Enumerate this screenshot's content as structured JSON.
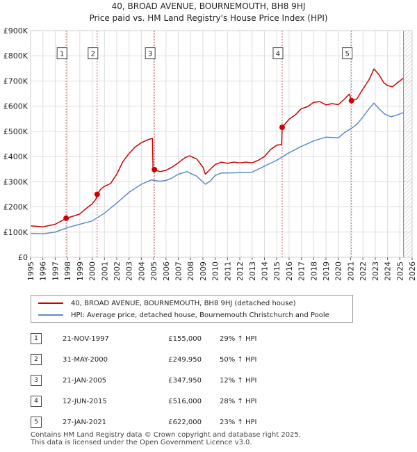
{
  "titles": {
    "line1": "40, BROAD AVENUE, BOURNEMOUTH, BH8 9HJ",
    "line2": "Price paid vs. HM Land Registry's House Price Index (HPI)"
  },
  "chart_data": {
    "type": "line",
    "title": "Price paid vs. HM Land Registry's House Price Index (HPI)",
    "xlim": [
      1995,
      2026
    ],
    "ylim": [
      0,
      900000
    ],
    "y_ticks": [
      0,
      100000,
      200000,
      300000,
      400000,
      500000,
      600000,
      700000,
      800000,
      900000
    ],
    "y_tick_labels": [
      "£0",
      "£100K",
      "£200K",
      "£300K",
      "£400K",
      "£500K",
      "£600K",
      "£700K",
      "£800K",
      "£900K"
    ],
    "x_ticks": [
      1995,
      1996,
      1997,
      1998,
      1999,
      2000,
      2001,
      2002,
      2003,
      2004,
      2005,
      2006,
      2007,
      2008,
      2009,
      2010,
      2011,
      2012,
      2013,
      2014,
      2015,
      2016,
      2017,
      2018,
      2019,
      2020,
      2021,
      2022,
      2023,
      2024,
      2025,
      2026
    ],
    "x_tick_labels": [
      "1995",
      "1996",
      "1997",
      "1998",
      "1999",
      "2000",
      "2001",
      "2002",
      "2003",
      "2004",
      "2005",
      "2006",
      "2007",
      "2008",
      "2009",
      "2010",
      "2011",
      "2012",
      "2013",
      "2014",
      "2015",
      "2016",
      "2017",
      "2018",
      "2019",
      "2020",
      "2021",
      "2022",
      "2023",
      "2024",
      "2025",
      "2026"
    ],
    "grid": true,
    "hatched_from": 2025.3,
    "series": [
      {
        "name": "40, BROAD AVENUE, BOURNEMOUTH, BH8 9HJ (detached house)",
        "color": "#cc0000",
        "points": [
          [
            1995.0,
            125000
          ],
          [
            1996.0,
            121000
          ],
          [
            1996.5,
            126000
          ],
          [
            1997.0,
            131000
          ],
          [
            1997.5,
            144000
          ],
          [
            1997.89,
            155000
          ],
          [
            1998.5,
            164000
          ],
          [
            1999.0,
            172000
          ],
          [
            1999.5,
            193000
          ],
          [
            2000.0,
            212000
          ],
          [
            2000.3,
            230000
          ],
          [
            2000.41,
            249950
          ],
          [
            2000.7,
            270000
          ],
          [
            2001.0,
            282000
          ],
          [
            2001.5,
            293000
          ],
          [
            2002.0,
            330000
          ],
          [
            2002.5,
            380000
          ],
          [
            2003.0,
            412000
          ],
          [
            2003.5,
            438000
          ],
          [
            2004.0,
            455000
          ],
          [
            2004.5,
            466000
          ],
          [
            2004.9,
            472000
          ],
          [
            2004.95,
            350000
          ],
          [
            2005.06,
            347950
          ],
          [
            2005.5,
            340000
          ],
          [
            2006.0,
            345000
          ],
          [
            2006.5,
            358000
          ],
          [
            2007.0,
            375000
          ],
          [
            2007.5,
            394000
          ],
          [
            2007.9,
            403000
          ],
          [
            2008.5,
            390000
          ],
          [
            2009.0,
            358000
          ],
          [
            2009.2,
            330000
          ],
          [
            2009.5,
            345000
          ],
          [
            2010.0,
            368000
          ],
          [
            2010.5,
            378000
          ],
          [
            2011.0,
            373000
          ],
          [
            2011.5,
            378000
          ],
          [
            2012.0,
            375000
          ],
          [
            2012.5,
            378000
          ],
          [
            2013.0,
            375000
          ],
          [
            2013.5,
            385000
          ],
          [
            2014.0,
            400000
          ],
          [
            2014.5,
            428000
          ],
          [
            2015.0,
            445000
          ],
          [
            2015.4,
            448000
          ],
          [
            2015.44,
            516000
          ],
          [
            2016.0,
            548000
          ],
          [
            2016.5,
            565000
          ],
          [
            2017.0,
            590000
          ],
          [
            2017.5,
            598000
          ],
          [
            2018.0,
            615000
          ],
          [
            2018.5,
            618000
          ],
          [
            2019.0,
            605000
          ],
          [
            2019.5,
            610000
          ],
          [
            2020.0,
            606000
          ],
          [
            2020.5,
            628000
          ],
          [
            2020.9,
            648000
          ],
          [
            2021.07,
            622000
          ],
          [
            2021.5,
            628000
          ],
          [
            2022.0,
            668000
          ],
          [
            2022.5,
            705000
          ],
          [
            2022.9,
            748000
          ],
          [
            2023.3,
            725000
          ],
          [
            2023.7,
            693000
          ],
          [
            2024.0,
            682000
          ],
          [
            2024.4,
            677000
          ],
          [
            2024.8,
            693000
          ],
          [
            2025.0,
            700000
          ],
          [
            2025.3,
            712000
          ]
        ]
      },
      {
        "name": "HPI: Average price, detached house, Bournemouth Christchurch and Poole",
        "color": "#5b8cc8",
        "points": [
          [
            1995.0,
            95000
          ],
          [
            1996.0,
            93000
          ],
          [
            1997.0,
            100000
          ],
          [
            1998.0,
            118000
          ],
          [
            1999.0,
            131000
          ],
          [
            2000.0,
            144000
          ],
          [
            2001.0,
            175000
          ],
          [
            2002.0,
            215000
          ],
          [
            2003.0,
            258000
          ],
          [
            2004.0,
            290000
          ],
          [
            2004.8,
            307000
          ],
          [
            2005.5,
            302000
          ],
          [
            2006.0,
            305000
          ],
          [
            2006.5,
            315000
          ],
          [
            2007.0,
            330000
          ],
          [
            2007.7,
            340000
          ],
          [
            2008.5,
            322000
          ],
          [
            2009.2,
            290000
          ],
          [
            2009.6,
            303000
          ],
          [
            2010.0,
            325000
          ],
          [
            2010.5,
            335000
          ],
          [
            2011.0,
            335000
          ],
          [
            2012.0,
            336000
          ],
          [
            2013.0,
            338000
          ],
          [
            2014.0,
            362000
          ],
          [
            2015.0,
            385000
          ],
          [
            2016.0,
            415000
          ],
          [
            2017.0,
            440000
          ],
          [
            2018.0,
            462000
          ],
          [
            2019.0,
            477000
          ],
          [
            2020.0,
            474000
          ],
          [
            2020.5,
            495000
          ],
          [
            2021.0,
            510000
          ],
          [
            2021.5,
            527000
          ],
          [
            2022.0,
            557000
          ],
          [
            2022.5,
            590000
          ],
          [
            2022.9,
            612000
          ],
          [
            2023.3,
            590000
          ],
          [
            2023.8,
            568000
          ],
          [
            2024.3,
            558000
          ],
          [
            2024.8,
            565000
          ],
          [
            2025.3,
            575000
          ]
        ]
      }
    ],
    "sales": [
      {
        "id": "1",
        "year": 1997.89,
        "price": 155000
      },
      {
        "id": "2",
        "year": 2000.41,
        "price": 249950
      },
      {
        "id": "3",
        "year": 2005.06,
        "price": 347950
      },
      {
        "id": "4",
        "year": 2015.44,
        "price": 516000
      },
      {
        "id": "5",
        "year": 2021.07,
        "price": 622000
      }
    ],
    "annotation_labels": [
      "1",
      "2",
      "3",
      "4",
      "5"
    ]
  },
  "legend": {
    "property_label": "40, BROAD AVENUE, BOURNEMOUTH, BH8 9HJ (detached house)",
    "hpi_label": "HPI: Average price, detached house, Bournemouth Christchurch and Poole",
    "property_color": "#cc0000",
    "hpi_color": "#5b8cc8"
  },
  "sales_table": [
    {
      "num": "1",
      "date": "21-NOV-1997",
      "price": "£155,000",
      "hpi": "29% ↑ HPI"
    },
    {
      "num": "2",
      "date": "31-MAY-2000",
      "price": "£249,950",
      "hpi": "50% ↑ HPI"
    },
    {
      "num": "3",
      "date": "21-JAN-2005",
      "price": "£347,950",
      "hpi": "12% ↑ HPI"
    },
    {
      "num": "4",
      "date": "12-JUN-2015",
      "price": "£516,000",
      "hpi": "28% ↑ HPI"
    },
    {
      "num": "5",
      "date": "27-JAN-2021",
      "price": "£622,000",
      "hpi": "23% ↑ HPI"
    }
  ],
  "footer": {
    "line1": "Contains HM Land Registry data © Crown copyright and database right 2025.",
    "line2": "This data is licensed under the Open Government Licence v3.0."
  }
}
